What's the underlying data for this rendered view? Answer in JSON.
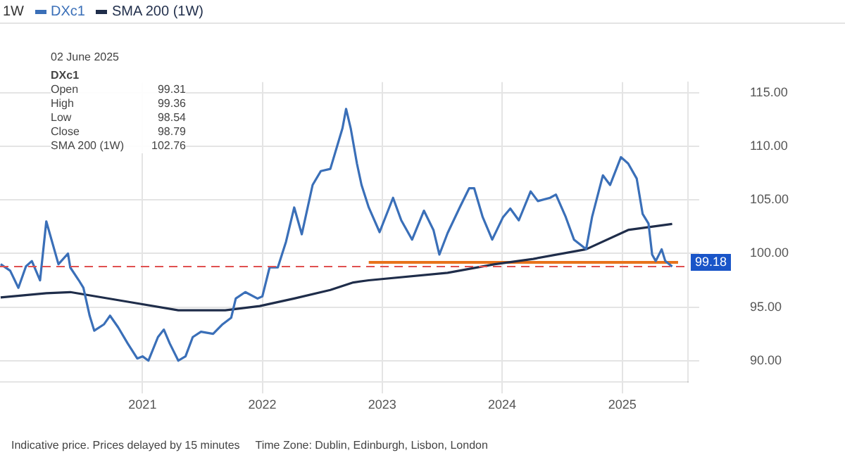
{
  "chart_data": {
    "type": "line",
    "legend": "top left",
    "grid": true,
    "marker": "none",
    "tick_labels": "xy",
    "xlim": [
      "2019-10-25",
      "2025-07-20"
    ],
    "xticks": [
      "2021",
      "2022",
      "2023",
      "2024",
      "2025"
    ],
    "ylim": [
      88,
      116
    ],
    "yticks": [
      {
        "value": 90,
        "label": "90.00"
      },
      {
        "value": 95,
        "label": "95.00"
      },
      {
        "value": 100,
        "label": "100.00"
      },
      {
        "value": 105,
        "label": "105.00"
      },
      {
        "value": 110,
        "label": "110.00"
      },
      {
        "value": 115,
        "label": "115.00"
      }
    ],
    "series": [
      {
        "name": "DXc1",
        "color": "#3a6fb8",
        "x": [
          "2019-10-27",
          "2019-11-25",
          "2019-12-20",
          "2020-01-12",
          "2020-01-30",
          "2020-02-24",
          "2020-03-14",
          "2020-04-20",
          "2020-05-19",
          "2020-05-26",
          "2020-06-21",
          "2020-07-05",
          "2020-07-24",
          "2020-08-07",
          "2020-09-06",
          "2020-09-24",
          "2020-10-19",
          "2020-11-17",
          "2020-12-16",
          "2021-01-01",
          "2021-01-19",
          "2021-02-17",
          "2021-03-07",
          "2021-03-25",
          "2021-04-20",
          "2021-05-12",
          "2021-06-03",
          "2021-06-28",
          "2021-08-04",
          "2021-09-02",
          "2021-09-28",
          "2021-10-12",
          "2021-11-10",
          "2021-12-17",
          "2022-01-01",
          "2022-01-23",
          "2022-02-17",
          "2022-03-14",
          "2022-04-08",
          "2022-05-01",
          "2022-06-03",
          "2022-06-28",
          "2022-07-27",
          "2022-09-02",
          "2022-09-13",
          "2022-09-27",
          "2022-10-16",
          "2022-10-30",
          "2022-11-21",
          "2022-12-24",
          "2023-02-03",
          "2023-02-28",
          "2023-04-02",
          "2023-05-08",
          "2023-06-06",
          "2023-06-24",
          "2023-07-19",
          "2023-08-25",
          "2023-09-23",
          "2023-10-08",
          "2023-11-03",
          "2023-12-02",
          "2024-01-04",
          "2024-01-26",
          "2024-02-21",
          "2024-03-28",
          "2024-04-19",
          "2024-05-26",
          "2024-06-13",
          "2024-07-13",
          "2024-08-07",
          "2024-09-13",
          "2024-10-01",
          "2024-11-03",
          "2024-11-25",
          "2024-12-28",
          "2025-01-19",
          "2025-02-14",
          "2025-03-04",
          "2025-03-22",
          "2025-04-02",
          "2025-04-13",
          "2025-05-01",
          "2025-05-12",
          "2025-06-02"
        ],
        "values": [
          99.0,
          98.4,
          96.8,
          98.8,
          99.3,
          97.5,
          103.0,
          99.0,
          100.0,
          98.7,
          97.5,
          96.8,
          94.2,
          92.8,
          93.4,
          94.2,
          93.1,
          91.6,
          90.2,
          90.4,
          90.0,
          92.2,
          92.9,
          91.6,
          90.0,
          90.4,
          92.2,
          92.7,
          92.5,
          93.4,
          94.0,
          95.8,
          96.4,
          95.8,
          96.0,
          98.7,
          98.7,
          101.1,
          104.3,
          101.8,
          106.4,
          107.7,
          107.9,
          111.7,
          113.5,
          111.7,
          108.4,
          106.4,
          104.3,
          102.0,
          105.2,
          103.1,
          101.3,
          104.0,
          102.2,
          99.9,
          101.9,
          104.3,
          106.1,
          106.1,
          103.4,
          101.3,
          103.4,
          104.2,
          103.1,
          105.8,
          104.9,
          105.2,
          105.5,
          103.4,
          101.3,
          100.4,
          103.4,
          107.3,
          106.4,
          109.0,
          108.4,
          107.0,
          103.7,
          102.8,
          99.9,
          99.3,
          100.4,
          99.3,
          98.79
        ]
      },
      {
        "name": "SMA 200 (1W)",
        "color": "#1f2d4a",
        "x": [
          "2019-10-27",
          "2020-03-14",
          "2020-05-26",
          "2020-11-17",
          "2021-04-20",
          "2021-09-10",
          "2021-12-24",
          "2022-04-08",
          "2022-07-27",
          "2022-10-05",
          "2022-11-21",
          "2023-07-19",
          "2023-12-10",
          "2024-04-05",
          "2024-09-13",
          "2025-01-19",
          "2025-06-02"
        ],
        "values": [
          95.9,
          96.3,
          96.4,
          95.5,
          94.7,
          94.7,
          95.1,
          95.8,
          96.6,
          97.3,
          97.5,
          98.2,
          99.0,
          99.5,
          100.4,
          102.2,
          102.76
        ]
      },
      {
        "color": "#e8731c",
        "x": [
          "2022-11-21",
          "2025-06-20"
        ],
        "values": [
          99.18,
          99.18
        ]
      }
    ],
    "ref_lines": [
      {
        "axis": "y",
        "value": 98.79,
        "color": "#e05050",
        "line_style": "dashed"
      }
    ],
    "annotations": [
      "1W",
      "02 June 2025",
      "DXc1",
      "Open",
      "99.31",
      "High",
      "99.36",
      "Low",
      "98.54",
      "Close",
      "98.79",
      "SMA 200 (1W)",
      "102.76",
      "Indicative price. Prices delayed by 15 minutes     Time Zone: Dublin, Edinburgh, Lisbon, London",
      {
        "text": "99.18",
        "y": 99.18
      }
    ]
  }
}
